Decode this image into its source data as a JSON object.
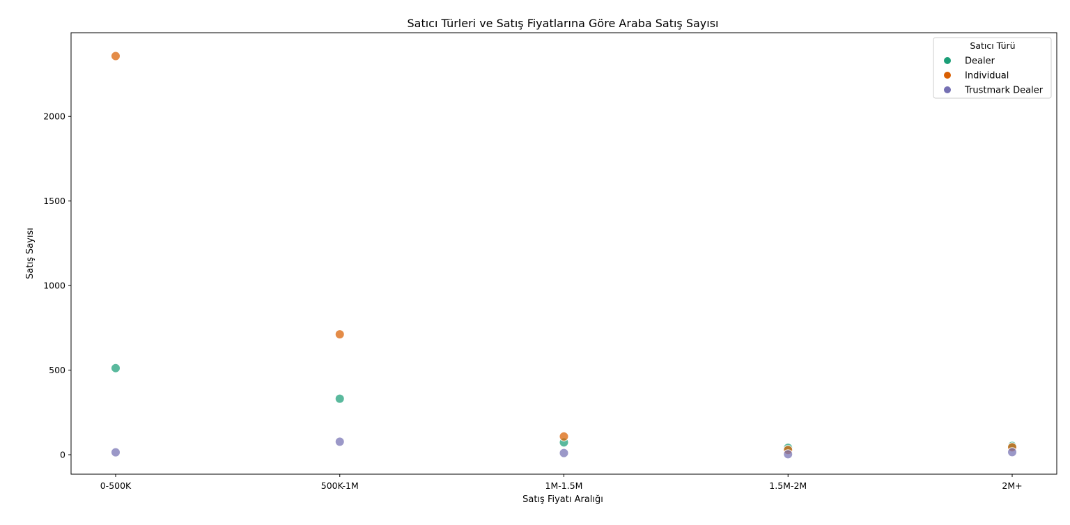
{
  "chart_data": {
    "type": "scatter",
    "title": "Satıcı Türleri ve Satış Fiyatlarına Göre Araba Satış Sayısı",
    "xlabel": "Satış Fiyatı Aralığı",
    "ylabel": "Satış Sayısı",
    "categories": [
      "0-500K",
      "500K-1M",
      "1M-1.5M",
      "1.5M-2M",
      "2M+"
    ],
    "ylim": [
      -115,
      2495
    ],
    "yticks": [
      0,
      500,
      1000,
      1500,
      2000
    ],
    "grid": false,
    "legend": {
      "title": "Satıcı Türü",
      "placement": "top-right"
    },
    "series": [
      {
        "name": "Dealer",
        "color": "#1b9e77",
        "values": [
          512,
          331,
          73,
          41,
          52
        ]
      },
      {
        "name": "Individual",
        "color": "#d95f02",
        "values": [
          2357,
          712,
          108,
          28,
          44
        ]
      },
      {
        "name": "Trustmark Dealer",
        "color": "#7570b3",
        "values": [
          14,
          77,
          10,
          3,
          15
        ]
      }
    ]
  }
}
